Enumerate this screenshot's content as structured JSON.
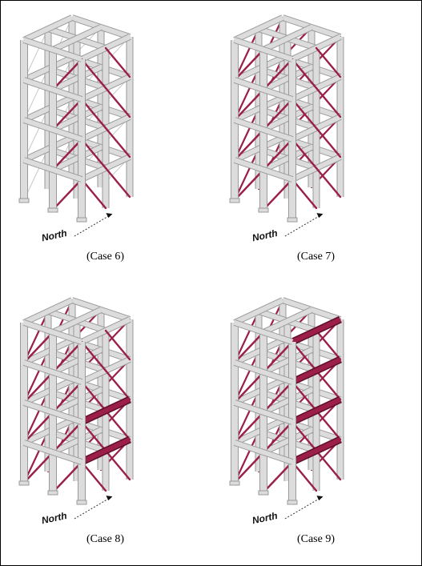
{
  "figure": {
    "panels": [
      {
        "id": "case6",
        "caption": "(Case 6)",
        "compass_label": "North",
        "bracing": "partial",
        "beams_highlighted": false
      },
      {
        "id": "case7",
        "caption": "(Case 7)",
        "compass_label": "North",
        "bracing": "full",
        "beams_highlighted": false
      },
      {
        "id": "case8",
        "caption": "(Case 8)",
        "compass_label": "North",
        "bracing": "full",
        "beams_highlighted": "lower-right"
      },
      {
        "id": "case9",
        "caption": "(Case 9)",
        "compass_label": "North",
        "bracing": "full",
        "beams_highlighted": "right-all"
      }
    ],
    "colors": {
      "frame": "#dcdcdc",
      "frame_edge": "#9a9a9a",
      "brace": "#9b1f48",
      "brace_light": "#c9c9c9"
    }
  }
}
